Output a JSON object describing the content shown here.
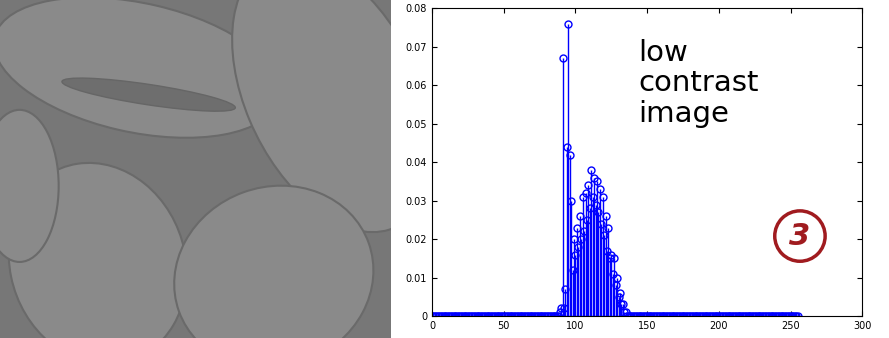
{
  "chart_data": {
    "type": "stem",
    "annotations": [
      "low\ncontrast\nimage",
      "3"
    ],
    "x": [
      0,
      1,
      2,
      3,
      4,
      5,
      6,
      7,
      8,
      9,
      10,
      11,
      12,
      13,
      14,
      15,
      16,
      17,
      18,
      19,
      20,
      21,
      22,
      23,
      24,
      25,
      26,
      27,
      28,
      29,
      30,
      31,
      32,
      33,
      34,
      35,
      36,
      37,
      38,
      39,
      40,
      41,
      42,
      43,
      44,
      45,
      46,
      47,
      48,
      49,
      50,
      51,
      52,
      53,
      54,
      55,
      56,
      57,
      58,
      59,
      60,
      61,
      62,
      63,
      64,
      65,
      66,
      67,
      68,
      69,
      70,
      71,
      72,
      73,
      74,
      75,
      76,
      77,
      78,
      79,
      80,
      81,
      82,
      83,
      84,
      85,
      86,
      87,
      88,
      89,
      90,
      91,
      92,
      93,
      94,
      95,
      96,
      97,
      98,
      99,
      100,
      101,
      102,
      103,
      104,
      105,
      106,
      107,
      108,
      109,
      110,
      111,
      112,
      113,
      114,
      115,
      116,
      117,
      118,
      119,
      120,
      121,
      122,
      123,
      124,
      125,
      126,
      127,
      128,
      129,
      130,
      131,
      132,
      133,
      134,
      135,
      136,
      137,
      138,
      139,
      140,
      141,
      142,
      143,
      144,
      145,
      146,
      147,
      148,
      149,
      150,
      151,
      152,
      153,
      154,
      155,
      156,
      157,
      158,
      159,
      160,
      161,
      162,
      163,
      164,
      165,
      166,
      167,
      168,
      169,
      170,
      171,
      172,
      173,
      174,
      175,
      176,
      177,
      178,
      179,
      180,
      181,
      182,
      183,
      184,
      185,
      186,
      187,
      188,
      189,
      190,
      191,
      192,
      193,
      194,
      195,
      196,
      197,
      198,
      199,
      200,
      201,
      202,
      203,
      204,
      205,
      206,
      207,
      208,
      209,
      210,
      211,
      212,
      213,
      214,
      215,
      216,
      217,
      218,
      219,
      220,
      221,
      222,
      223,
      224,
      225,
      226,
      227,
      228,
      229,
      230,
      231,
      232,
      233,
      234,
      235,
      236,
      237,
      238,
      239,
      240,
      241,
      242,
      243,
      244,
      245,
      246,
      247,
      248,
      249,
      250,
      251,
      252,
      253,
      254,
      255
    ],
    "values": [
      0,
      0,
      0,
      0,
      0,
      0,
      0,
      0,
      0,
      0,
      0,
      0,
      0,
      0,
      0,
      0,
      0,
      0,
      0,
      0,
      0,
      0,
      0,
      0,
      0,
      0,
      0,
      0,
      0,
      0,
      0,
      0,
      0,
      0,
      0,
      0,
      0,
      0,
      0,
      0,
      0,
      0,
      0,
      0,
      0,
      0,
      0,
      0,
      0,
      0,
      0,
      0,
      0,
      0,
      0,
      0,
      0,
      0,
      0,
      0,
      0,
      0,
      0,
      0,
      0,
      0,
      0,
      0,
      0,
      0,
      0,
      0,
      0,
      0,
      0,
      0,
      0,
      0,
      0,
      0,
      0,
      0,
      0,
      0,
      0,
      0,
      0,
      0,
      0.0,
      0.001,
      0.002,
      0.067,
      0.002,
      0.007,
      0.044,
      0.076,
      0.042,
      0.03,
      0.012,
      0.02,
      0.016,
      0.023,
      0.018,
      0.026,
      0.02,
      0.031,
      0.022,
      0.032,
      0.025,
      0.034,
      0.028,
      0.038,
      0.031,
      0.036,
      0.029,
      0.035,
      0.027,
      0.033,
      0.024,
      0.031,
      0.021,
      0.026,
      0.017,
      0.023,
      0.015,
      0.016,
      0.011,
      0.015,
      0.008,
      0.01,
      0.005,
      0.006,
      0.003,
      0.003,
      0.001,
      0.001,
      0.0,
      0,
      0,
      0,
      0,
      0,
      0,
      0,
      0,
      0,
      0,
      0,
      0,
      0,
      0,
      0,
      0,
      0,
      0,
      0,
      0,
      0,
      0,
      0,
      0,
      0,
      0,
      0,
      0,
      0,
      0,
      0,
      0,
      0,
      0,
      0,
      0,
      0,
      0,
      0,
      0,
      0,
      0,
      0,
      0,
      0,
      0,
      0,
      0,
      0,
      0,
      0,
      0,
      0,
      0,
      0,
      0,
      0,
      0,
      0,
      0,
      0,
      0,
      0,
      0,
      0,
      0,
      0,
      0,
      0,
      0,
      0,
      0,
      0,
      0,
      0,
      0,
      0,
      0,
      0,
      0,
      0,
      0,
      0,
      0,
      0,
      0,
      0,
      0,
      0,
      0,
      0,
      0,
      0,
      0,
      0,
      0,
      0,
      0,
      0,
      0,
      0,
      0,
      0,
      0,
      0,
      0,
      0,
      0,
      0,
      0,
      0,
      0,
      0,
      0,
      0,
      0,
      0,
      0,
      0
    ],
    "color": "#0000ff",
    "marker": "circle",
    "xlim": [
      0,
      300
    ],
    "xticks": [
      0,
      50,
      100,
      150,
      200,
      250,
      300
    ],
    "ylim": [
      0,
      0.08
    ],
    "yticks": [
      0,
      0.01,
      0.02,
      0.03,
      0.04,
      0.05,
      0.06,
      0.07,
      0.08
    ],
    "grid": false
  }
}
